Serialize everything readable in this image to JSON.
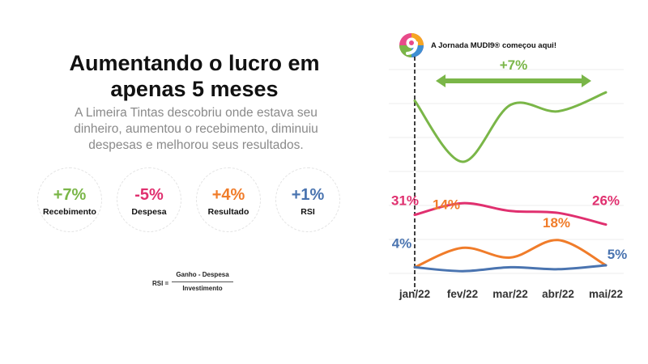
{
  "headline": {
    "line1": "Aumentando o lucro em",
    "line2": "apenas 5 meses"
  },
  "subtitle": {
    "line1": "A Limeira Tintas descobriu onde estava seu",
    "line2": "dinheiro, aumentou o recebimento, diminuiu",
    "line3": "despesas e melhorou seus resultados."
  },
  "kpis": [
    {
      "value": "+7%",
      "label": "Recebimento",
      "color": "#7ab648"
    },
    {
      "value": "-5%",
      "label": "Despesa",
      "color": "#e0306f"
    },
    {
      "value": "+4%",
      "label": "Resultado",
      "color": "#f07c2a"
    },
    {
      "value": "+1%",
      "label": "RSI",
      "color": "#4a74b0"
    }
  ],
  "formula": {
    "lhs": "RSI =",
    "numerator": "Ganho - Despesa",
    "denominator": "Investimento"
  },
  "logo": {
    "text": "A Jornada MUDI9® começou aqui!",
    "icon": "mudi9-logo-icon"
  },
  "chart_data": {
    "type": "line",
    "categories": [
      "jan/22",
      "fev/22",
      "mar/22",
      "abr/22",
      "mai/22"
    ],
    "growth_annotation": "+7%",
    "series": [
      {
        "key": "recebimento",
        "color": "#7ab648",
        "values": [
          38,
          9,
          36,
          33,
          42
        ]
      },
      {
        "key": "despesa",
        "color": "#e0306f",
        "values": [
          31,
          37,
          33,
          32,
          26
        ]
      },
      {
        "key": "resultado",
        "color": "#f07c2a",
        "values": [
          4,
          14,
          9,
          18,
          5
        ]
      },
      {
        "key": "rsi",
        "color": "#4a74b0",
        "values": [
          4,
          2,
          4,
          3,
          5
        ]
      }
    ],
    "data_labels": [
      {
        "series": "despesa",
        "index": 0,
        "text": "31%"
      },
      {
        "series": "despesa",
        "index": 4,
        "text": "26%"
      },
      {
        "series": "resultado",
        "index": 1,
        "text": "14%"
      },
      {
        "series": "resultado",
        "index": 3,
        "text": "18%"
      },
      {
        "series": "rsi",
        "index": 0,
        "text": "4%"
      },
      {
        "series": "rsi",
        "index": 4,
        "text": "5%"
      }
    ]
  }
}
